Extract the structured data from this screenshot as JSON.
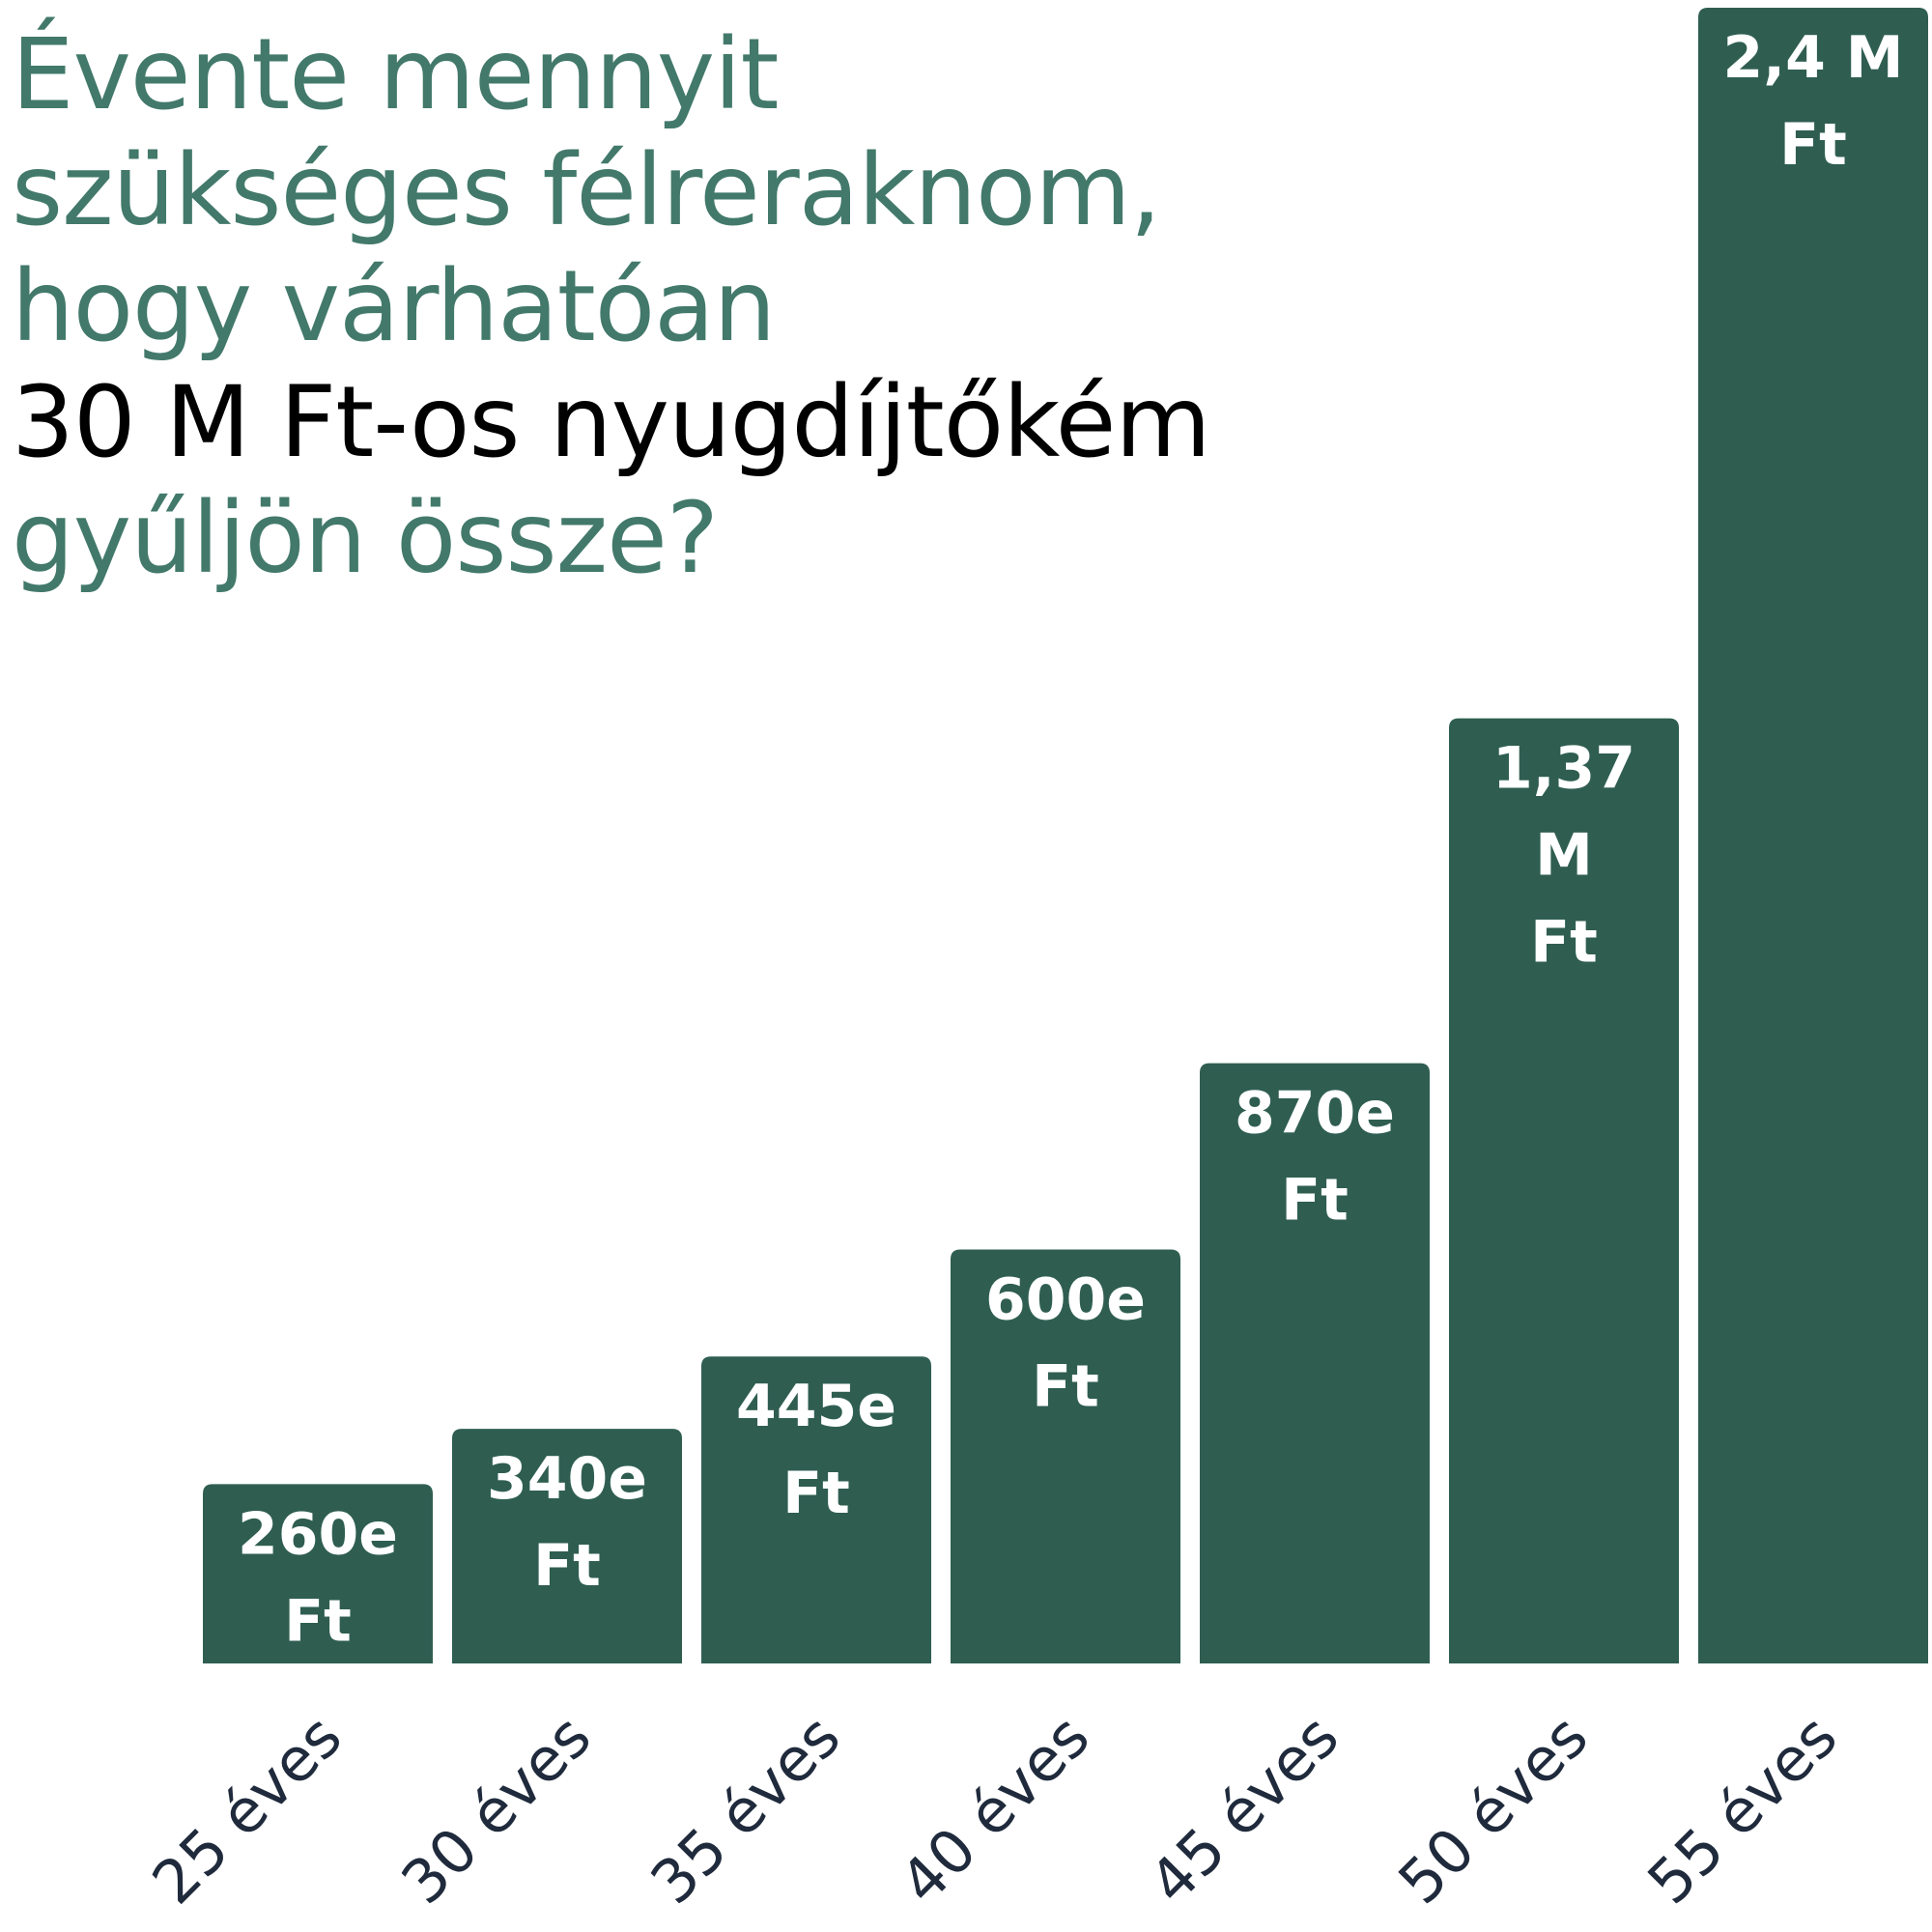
{
  "title": {
    "line1": "Évente mennyit",
    "line2": "szükséges félreraknom,",
    "line3": "hogy várhatóan",
    "line4": "30 M Ft-os nyugdíjtőkém",
    "line5": "gyűljön össze?"
  },
  "colors": {
    "bar": "#2f5e51",
    "title_accent": "#42796a",
    "title_emphasis": "#000000",
    "bar_label": "#ffffff",
    "axis_label": "#1f2a3c"
  },
  "chart_data": {
    "type": "bar",
    "title": "Évente mennyit szükséges félreraknom, hogy várhatóan 30 M Ft-os nyugdíjtőkém gyűljön össze?",
    "xlabel": "",
    "ylabel": "",
    "unit": "Ft",
    "categories": [
      "25 éves",
      "30 éves",
      "35 éves",
      "40 éves",
      "45 éves",
      "50 éves",
      "55 éves"
    ],
    "values": [
      260000,
      340000,
      445000,
      600000,
      870000,
      1370000,
      2400000
    ],
    "value_labels": [
      [
        "260e",
        "Ft"
      ],
      [
        "340e",
        "Ft"
      ],
      [
        "445e",
        "Ft"
      ],
      [
        "600e",
        "Ft"
      ],
      [
        "870e",
        "Ft"
      ],
      [
        "1,37",
        "M",
        "Ft"
      ],
      [
        "2,4 M",
        "Ft"
      ]
    ],
    "ylim": [
      0,
      2400000
    ],
    "grid": false,
    "legend": "none"
  }
}
